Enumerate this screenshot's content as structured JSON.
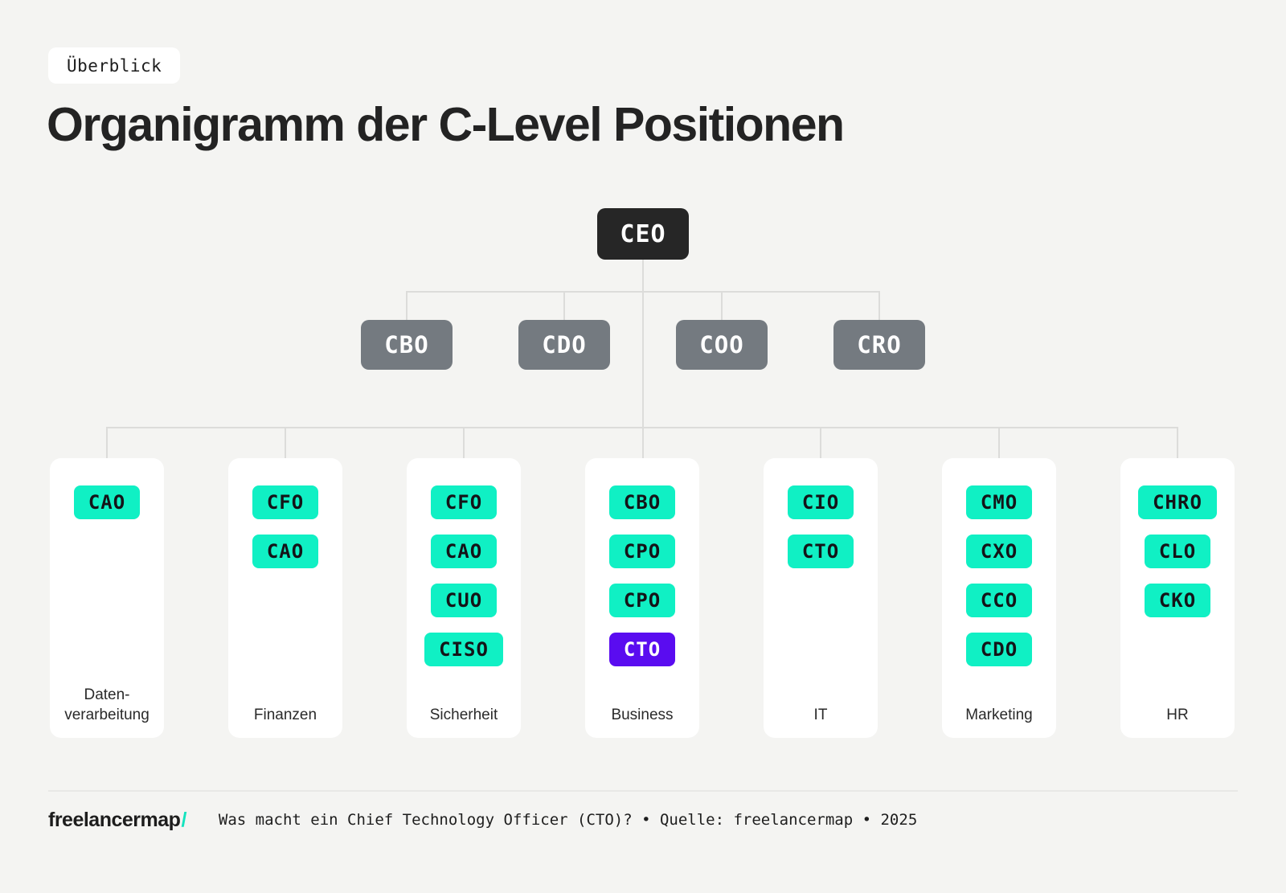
{
  "colors": {
    "background": "#f4f4f2",
    "card": "#ffffff",
    "ink": "#232323",
    "node_dark": "#262626",
    "node_gray": "#747a80",
    "chip_green": "#10f0c4",
    "chip_purple": "#5a0cf0",
    "connector": "#dcdcda",
    "logo_accent": "#14e3be"
  },
  "badge": {
    "label": "Überblick"
  },
  "title": "Organigramm der C-Level Positionen",
  "chart": {
    "root": {
      "label": "CEO"
    },
    "executives": [
      {
        "label": "CBO"
      },
      {
        "label": "CDO"
      },
      {
        "label": "COO"
      },
      {
        "label": "CRO"
      }
    ],
    "departments": [
      {
        "label": "Daten-\nverarbeitung",
        "roles": [
          {
            "label": "CAO",
            "variant": "green"
          }
        ]
      },
      {
        "label": "Finanzen",
        "roles": [
          {
            "label": "CFO",
            "variant": "green"
          },
          {
            "label": "CAO",
            "variant": "green"
          }
        ]
      },
      {
        "label": "Sicherheit",
        "roles": [
          {
            "label": "CFO",
            "variant": "green"
          },
          {
            "label": "CAO",
            "variant": "green"
          },
          {
            "label": "CUO",
            "variant": "green"
          },
          {
            "label": "CISO",
            "variant": "green"
          }
        ]
      },
      {
        "label": "Business",
        "roles": [
          {
            "label": "CBO",
            "variant": "green"
          },
          {
            "label": "CPO",
            "variant": "green"
          },
          {
            "label": "CPO",
            "variant": "green"
          },
          {
            "label": "CTO",
            "variant": "purple"
          }
        ]
      },
      {
        "label": "IT",
        "roles": [
          {
            "label": "CIO",
            "variant": "green"
          },
          {
            "label": "CTO",
            "variant": "green"
          }
        ]
      },
      {
        "label": "Marketing",
        "roles": [
          {
            "label": "CMO",
            "variant": "green"
          },
          {
            "label": "CXO",
            "variant": "green"
          },
          {
            "label": "CCO",
            "variant": "green"
          },
          {
            "label": "CDO",
            "variant": "green"
          }
        ]
      },
      {
        "label": "HR",
        "roles": [
          {
            "label": "CHRO",
            "variant": "green"
          },
          {
            "label": "CLO",
            "variant": "green"
          },
          {
            "label": "CKO",
            "variant": "green"
          }
        ]
      }
    ]
  },
  "footer": {
    "logo": "freelancermap",
    "logo_slash": "/",
    "caption": "Was macht ein Chief Technology Officer (CTO)? • Quelle: freelancermap • 2025"
  }
}
